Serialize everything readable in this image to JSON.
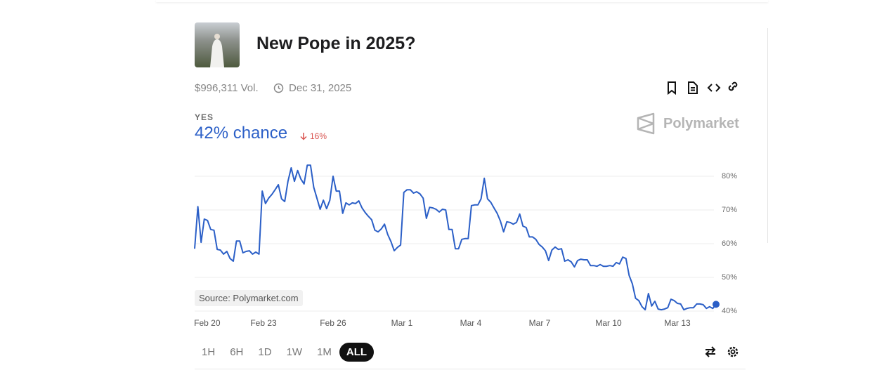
{
  "header": {
    "title": "New Pope in 2025?",
    "volume": "$996,311 Vol.",
    "end_date": "Dec 31, 2025"
  },
  "outcome": {
    "label": "YES",
    "chance": "42% chance",
    "change": "16%"
  },
  "brand": "Polymarket",
  "source": "Source: Polymarket.com",
  "time_ranges": [
    "1H",
    "6H",
    "1D",
    "1W",
    "1M",
    "ALL"
  ],
  "selected_range": "ALL",
  "chart_data": {
    "type": "line",
    "color": "#2b5fc7",
    "grid": true,
    "values": [
      58.5,
      71,
      60.4,
      67.3,
      66.9,
      64.2,
      64,
      58.3,
      58.1,
      56.9,
      57.7,
      55.6,
      54.8,
      60.8,
      60.8,
      57.3,
      57.7,
      57.9,
      56.9,
      57.5,
      56.9,
      75.6,
      71.9,
      73.5,
      74.6,
      76,
      77.5,
      73.3,
      72.5,
      78.5,
      82.5,
      78.5,
      81.7,
      79.2,
      77.7,
      83.3,
      83.3,
      76.7,
      73.5,
      70.2,
      72.9,
      70.4,
      72.9,
      80,
      75.6,
      75.6,
      69,
      72.1,
      71.5,
      72.1,
      71.9,
      72.7,
      70.6,
      69.2,
      68.1,
      67.1,
      64,
      63.5,
      64.4,
      65.8,
      62.7,
      60.6,
      57.9,
      58.9,
      59.6,
      75.2,
      76,
      76,
      75,
      75.4,
      74.8,
      73.5,
      67.5,
      70.8,
      70.6,
      70.2,
      69.4,
      70.2,
      70,
      64.2,
      64.2,
      58.5,
      58.5,
      61.3,
      61.5,
      61.5,
      71.3,
      71.5,
      71.5,
      73.3,
      79.4,
      73.3,
      72.3,
      70.6,
      69,
      66.7,
      63.5,
      66.5,
      66.3,
      65.8,
      66.3,
      68.8,
      65.2,
      64.8,
      62,
      62,
      61.3,
      59.8,
      59,
      57.9,
      55,
      58.1,
      59,
      58.3,
      58.5,
      54.8,
      55.2,
      54.6,
      53.1,
      55,
      55.4,
      55.2,
      55.2,
      53.5,
      53.5,
      53.3,
      53.8,
      53.3,
      53.3,
      53.5,
      53.3,
      54.4,
      54,
      56,
      55.6,
      50.6,
      48.1,
      43.8,
      43.1,
      41.3,
      40.4,
      45.2,
      41.5,
      42.9,
      40.6,
      40.4,
      40.6,
      41,
      43.5,
      43.1,
      42.3,
      42.1,
      40.4,
      40.8,
      41,
      41,
      42.1,
      42.1,
      41.9,
      40.8,
      41.3,
      40.8,
      42
    ],
    "ylim": [
      40,
      85
    ],
    "yticks": [
      {
        "value": 40,
        "label": "40%"
      },
      {
        "value": 50,
        "label": "50%"
      },
      {
        "value": 60,
        "label": "60%"
      },
      {
        "value": 70,
        "label": "70%"
      },
      {
        "value": 80,
        "label": "80%"
      }
    ],
    "xticks": [
      {
        "value": 3.9,
        "label": "Feb 20"
      },
      {
        "value": 21.4,
        "label": "Feb 23"
      },
      {
        "value": 43,
        "label": "Feb 26"
      },
      {
        "value": 64.4,
        "label": "Mar 1"
      },
      {
        "value": 85.8,
        "label": "Mar 4"
      },
      {
        "value": 107.2,
        "label": "Mar 7"
      },
      {
        "value": 128.6,
        "label": "Mar 10"
      },
      {
        "value": 150,
        "label": "Mar 13"
      }
    ]
  }
}
